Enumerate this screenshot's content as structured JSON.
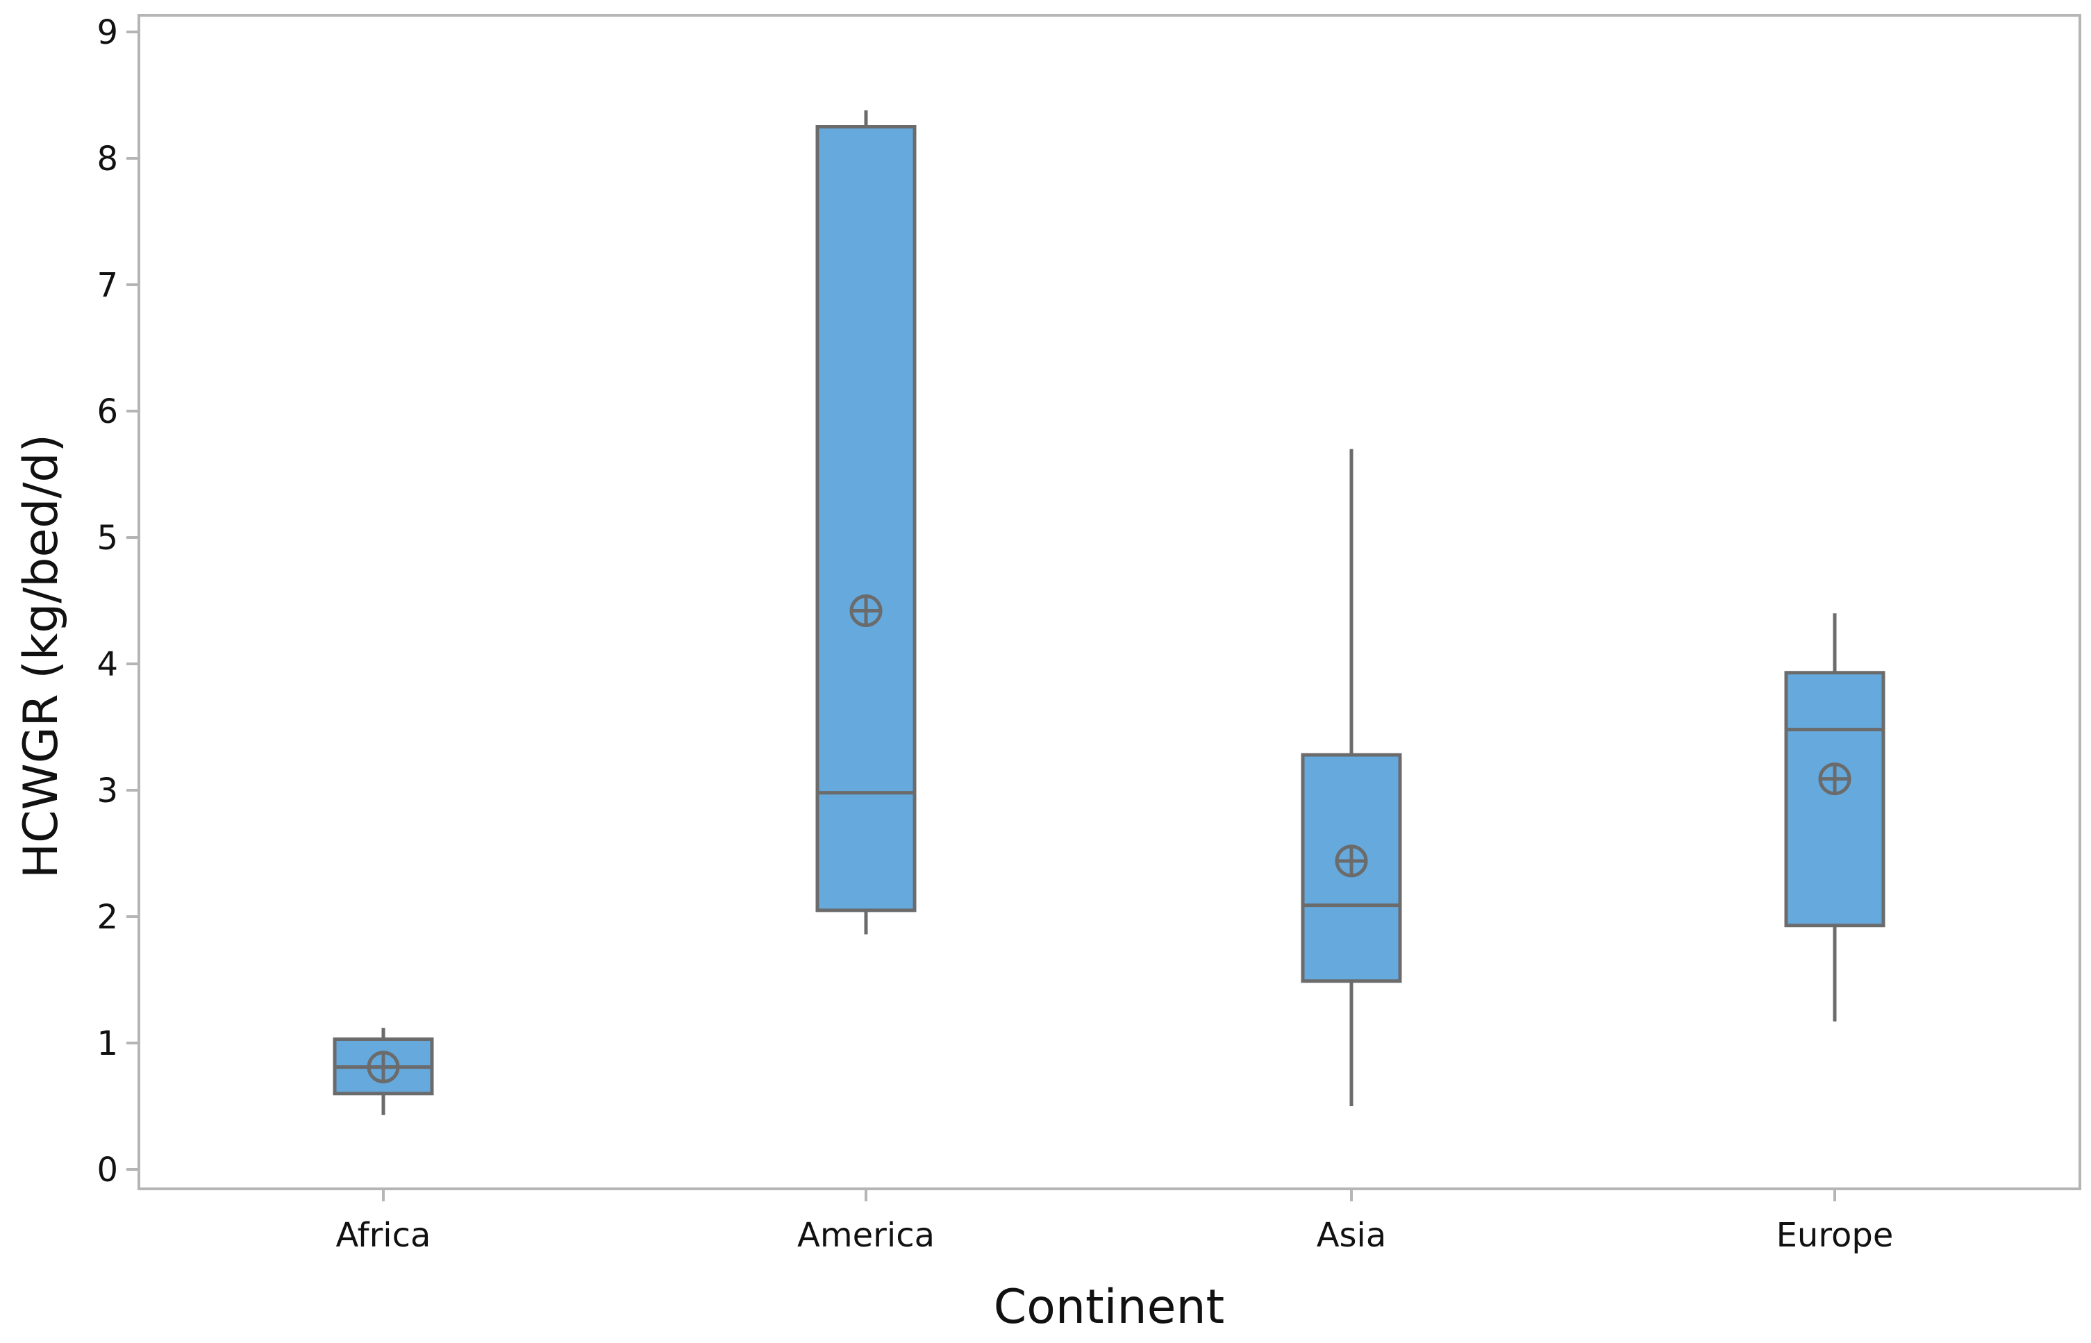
{
  "chart_data": {
    "type": "box",
    "xlabel": "Continent",
    "ylabel": "HCWGR (kg/bed/d)",
    "ylim": [
      0,
      9
    ],
    "yticks": [
      0,
      1,
      2,
      3,
      4,
      5,
      6,
      7,
      8,
      9
    ],
    "grid": false,
    "categories": [
      "Africa",
      "America",
      "Asia",
      "Europe"
    ],
    "boxes": [
      {
        "category": "Africa",
        "whisker_low": 0.43,
        "q1": 0.6,
        "median": 0.81,
        "q3": 1.03,
        "whisker_high": 1.12,
        "mean": 0.81
      },
      {
        "category": "America",
        "whisker_low": 1.86,
        "q1": 2.05,
        "median": 2.98,
        "q3": 8.25,
        "whisker_high": 8.38,
        "mean": 4.42
      },
      {
        "category": "Asia",
        "whisker_low": 0.5,
        "q1": 1.49,
        "median": 2.09,
        "q3": 3.28,
        "whisker_high": 5.7,
        "mean": 2.44
      },
      {
        "category": "Europe",
        "whisker_low": 1.17,
        "q1": 1.93,
        "median": 3.48,
        "q3": 3.93,
        "whisker_high": 4.4,
        "mean": 3.09
      }
    ],
    "colors": {
      "box_fill": "#66a9dc",
      "box_stroke": "#6b6b6b",
      "frame": "#b5b5b5"
    }
  }
}
